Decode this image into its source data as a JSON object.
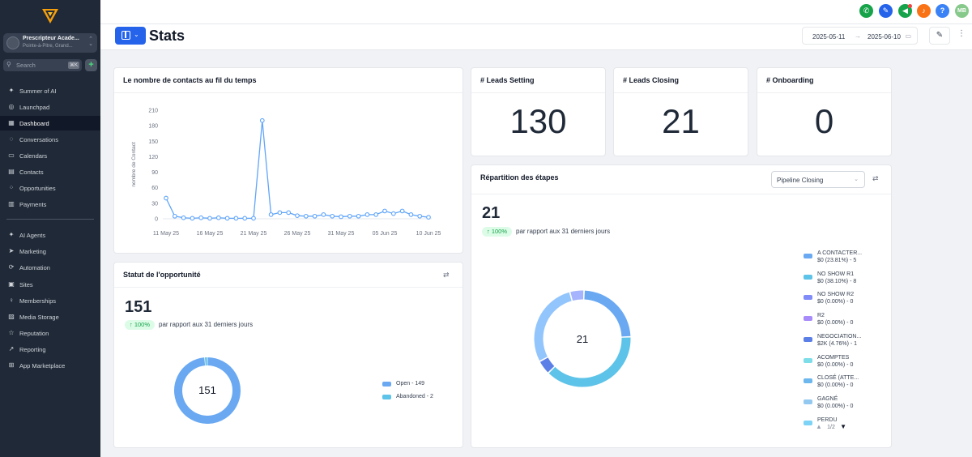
{
  "sidebar": {
    "account_name": "Prescripteur Acade...",
    "account_location": "Pointe-à-Pitre, Grand...",
    "search_placeholder": "Search",
    "search_shortcut": "⌘K",
    "items": [
      {
        "label": "Summer of AI",
        "icon": "sparkle-icon"
      },
      {
        "label": "Launchpad",
        "icon": "rocket-icon"
      },
      {
        "label": "Dashboard",
        "icon": "grid-icon"
      },
      {
        "label": "Conversations",
        "icon": "chat-icon"
      },
      {
        "label": "Calendars",
        "icon": "calendar-icon"
      },
      {
        "label": "Contacts",
        "icon": "contacts-icon"
      },
      {
        "label": "Opportunities",
        "icon": "network-icon"
      },
      {
        "label": "Payments",
        "icon": "payments-icon"
      },
      {
        "label": "AI Agents",
        "icon": "sparkle-icon"
      },
      {
        "label": "Marketing",
        "icon": "send-icon"
      },
      {
        "label": "Automation",
        "icon": "automation-icon"
      },
      {
        "label": "Sites",
        "icon": "sites-icon"
      },
      {
        "label": "Memberships",
        "icon": "membership-icon"
      },
      {
        "label": "Media Storage",
        "icon": "media-icon"
      },
      {
        "label": "Reputation",
        "icon": "star-icon"
      },
      {
        "label": "Reporting",
        "icon": "trend-icon"
      },
      {
        "label": "App Marketplace",
        "icon": "apps-icon"
      }
    ],
    "active": "Dashboard"
  },
  "topbar": {
    "buttons": [
      {
        "icon": "phone-icon",
        "color": "#16a34a"
      },
      {
        "icon": "magic-icon",
        "color": "#2563eb"
      },
      {
        "icon": "megaphone-icon",
        "color": "#16a34a"
      },
      {
        "icon": "bell-icon",
        "color": "#f97316"
      },
      {
        "icon": "help-icon",
        "color": "#3b82f6"
      }
    ],
    "avatar_initials": "MB",
    "avatar_color": "#86c98a"
  },
  "header": {
    "title": "Stats",
    "date_start": "2025-05-11",
    "date_end": "2025-06-10"
  },
  "contacts_card": {
    "title": "Le nombre de contacts au fil du temps"
  },
  "chart_data": {
    "type": "line",
    "title": "Le nombre de contacts au fil du temps",
    "xlabel": "",
    "ylabel": "nombre de Contact",
    "ylim": [
      0,
      210
    ],
    "yticks": [
      0,
      30,
      60,
      90,
      120,
      150,
      180,
      210
    ],
    "xtick_labels": [
      "11 May 25",
      "16 May 25",
      "21 May 25",
      "26 May 25",
      "31 May 25",
      "05 Jun 25",
      "10 Jun 25"
    ],
    "x": [
      "2025-05-11",
      "2025-05-12",
      "2025-05-13",
      "2025-05-14",
      "2025-05-15",
      "2025-05-16",
      "2025-05-17",
      "2025-05-18",
      "2025-05-19",
      "2025-05-20",
      "2025-05-21",
      "2025-05-22",
      "2025-05-23",
      "2025-05-24",
      "2025-05-25",
      "2025-05-26",
      "2025-05-27",
      "2025-05-28",
      "2025-05-29",
      "2025-05-30",
      "2025-05-31",
      "2025-06-01",
      "2025-06-02",
      "2025-06-03",
      "2025-06-04",
      "2025-06-05",
      "2025-06-06",
      "2025-06-07",
      "2025-06-08",
      "2025-06-09",
      "2025-06-10"
    ],
    "series": [
      {
        "values": [
          40,
          5,
          2,
          1,
          2,
          1,
          2,
          1,
          1,
          1,
          1,
          190,
          8,
          12,
          12,
          6,
          5,
          5,
          8,
          5,
          4,
          5,
          5,
          8,
          8,
          15,
          10,
          15,
          8,
          5,
          3
        ]
      }
    ],
    "color": "#60a5fa",
    "grid": false
  },
  "kpis": [
    {
      "title": "# Leads Setting",
      "value": "130"
    },
    {
      "title": "# Leads Closing",
      "value": "21"
    },
    {
      "title": "# Onboarding",
      "value": "0"
    }
  ],
  "opp_card": {
    "title": "Statut de l'opportunité",
    "total": "151",
    "change": "↑ 100%",
    "compare": "par rapport aux 31 derniers jours",
    "center": "151",
    "donut": [
      {
        "label": "Open - 149",
        "value": 149,
        "color": "#6aa9f2"
      },
      {
        "label": "Abandoned - 2",
        "value": 2,
        "color": "#5ec3e8"
      }
    ]
  },
  "stages_card": {
    "title": "Répartition des étapes",
    "pipeline": "Pipeline Closing",
    "total": "21",
    "change": "↑ 100%",
    "compare": "par rapport aux 31 derniers jours",
    "center": "21",
    "pager": "1/2",
    "stages": [
      {
        "name": "A CONTACTER...",
        "detail": "$0 (23.81%) - 5",
        "value": 5,
        "color": "#6aa9f2"
      },
      {
        "name": "NO SHOW R1",
        "detail": "$0 (38.10%) - 8",
        "value": 8,
        "color": "#5ec3e8"
      },
      {
        "name": "NO SHOW R2",
        "detail": "$0 (0.00%) - 0",
        "value": 0,
        "color": "#818cf8"
      },
      {
        "name": "R2",
        "detail": "$0 (0.00%) - 0",
        "value": 0,
        "color": "#a78bfa"
      },
      {
        "name": "NEGOCIATION...",
        "detail": "$2K (4.76%) - 1",
        "value": 1,
        "color": "#5b7fe6"
      },
      {
        "name": "ACOMPTES",
        "detail": "$0 (0.00%) - 0",
        "value": 0,
        "color": "#7ddde8"
      },
      {
        "name": "CLOSÉ (ATTE...",
        "detail": "$0 (0.00%) - 0",
        "value": 0,
        "color": "#6bb7ee"
      },
      {
        "name": "GAGNÉ",
        "detail": "$0 (0.00%) - 0",
        "value": 0,
        "color": "#93c9f0"
      },
      {
        "name": "PERDU",
        "detail": "",
        "value": 0,
        "color": "#7dd3f5"
      }
    ],
    "donut_segments": [
      {
        "value": 5,
        "color": "#6aa9f2"
      },
      {
        "value": 8,
        "color": "#5ec3e8"
      },
      {
        "value": 1,
        "color": "#5b7fe6"
      },
      {
        "value": 6,
        "color": "#93c5fd"
      },
      {
        "value": 1,
        "color": "#a5b4fc"
      }
    ]
  }
}
